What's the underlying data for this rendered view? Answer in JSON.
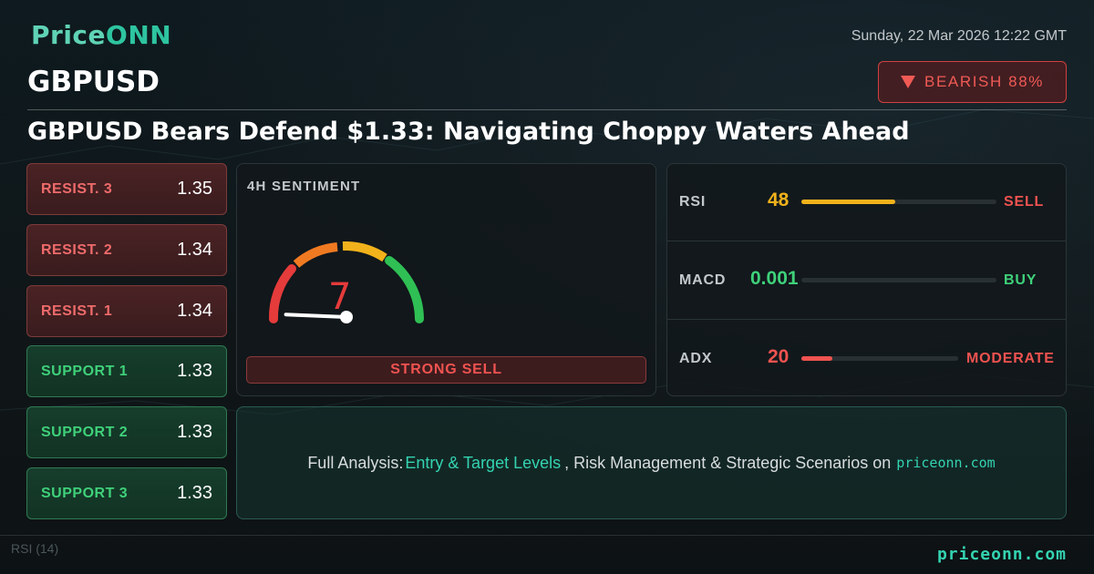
{
  "brand": {
    "name_prefix": "Price",
    "name_suffix": "ONN"
  },
  "datetime": "Sunday, 22 Mar 2026 12:22 GMT",
  "symbol": "GBPUSD",
  "bias": {
    "label": "BEARISH 88%",
    "color": "#f05a55"
  },
  "headline": "GBPUSD Bears Defend $1.33: Navigating Choppy Waters Ahead",
  "levels": [
    {
      "label": "RESIST. 3",
      "value": "1.35",
      "kind": "resistance"
    },
    {
      "label": "RESIST. 2",
      "value": "1.34",
      "kind": "resistance"
    },
    {
      "label": "RESIST. 1",
      "value": "1.34",
      "kind": "resistance"
    },
    {
      "label": "SUPPORT 1",
      "value": "1.33",
      "kind": "support"
    },
    {
      "label": "SUPPORT 2",
      "value": "1.33",
      "kind": "support"
    },
    {
      "label": "SUPPORT 3",
      "value": "1.33",
      "kind": "support"
    }
  ],
  "sentiment": {
    "title": "4H SENTIMENT",
    "score": "7",
    "score_fraction": 0.07,
    "verdict": "STRONG SELL"
  },
  "indicators": [
    {
      "name": "RSI",
      "value": "48",
      "fill_fraction": 0.48,
      "signal": "SELL",
      "value_color": "#f2b21b",
      "signal_color": "#ef5350",
      "fill_color": "#f2b21b"
    },
    {
      "name": "MACD",
      "value": "0.001",
      "fill_fraction": 0.0,
      "signal": "BUY",
      "value_color": "#3fd17a",
      "signal_color": "#3fd17a",
      "fill_color": "#3fd17a"
    },
    {
      "name": "ADX",
      "value": "20",
      "fill_fraction": 0.2,
      "signal": "MODERATE",
      "value_color": "#ef5350",
      "signal_color": "#ef5350",
      "fill_color": "#ef5350"
    }
  ],
  "cta": {
    "prefix": "Full Analysis:",
    "highlight": "Entry & Target Levels",
    "rest": ", Risk Management & Strategic Scenarios on",
    "domain": "priceonn.com"
  },
  "footer": {
    "domain": "priceonn.com",
    "ghost_label": "RSI (14)"
  },
  "icons": {
    "bias_arrow": "triangle-down-icon"
  }
}
